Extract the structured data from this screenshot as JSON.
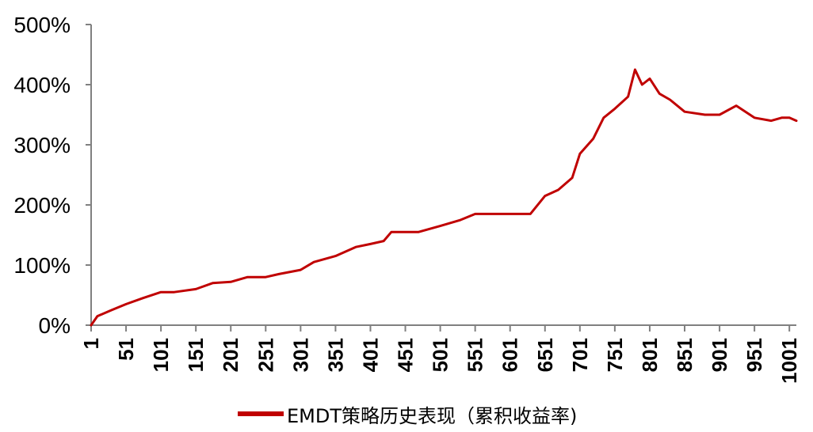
{
  "chart_data": {
    "type": "line",
    "ylim": [
      0,
      500
    ],
    "xlim": [
      1,
      1011
    ],
    "yticks": [
      "0%",
      "100%",
      "200%",
      "300%",
      "400%",
      "500%"
    ],
    "ytick_values": [
      0,
      100,
      200,
      300,
      400,
      500
    ],
    "xticks": [
      "1",
      "51",
      "101",
      "151",
      "201",
      "251",
      "301",
      "351",
      "401",
      "451",
      "501",
      "551",
      "601",
      "651",
      "701",
      "751",
      "801",
      "851",
      "901",
      "951",
      "1001"
    ],
    "xtick_values": [
      1,
      51,
      101,
      151,
      201,
      251,
      301,
      351,
      401,
      451,
      501,
      551,
      601,
      651,
      701,
      751,
      801,
      851,
      901,
      951,
      1001
    ],
    "grid": false,
    "legend_position": "bottom",
    "series": [
      {
        "name": "EMDT策略历史表现（累积收益率)",
        "color": "#c00000",
        "x": [
          1,
          10,
          30,
          51,
          75,
          101,
          120,
          151,
          175,
          201,
          225,
          251,
          270,
          301,
          320,
          351,
          380,
          401,
          420,
          431,
          451,
          470,
          501,
          530,
          551,
          580,
          601,
          630,
          651,
          670,
          690,
          701,
          720,
          735,
          751,
          770,
          780,
          790,
          801,
          815,
          830,
          851,
          880,
          901,
          925,
          951,
          975,
          990,
          1001,
          1011
        ],
        "y": [
          0,
          15,
          25,
          35,
          45,
          55,
          55,
          60,
          70,
          72,
          80,
          80,
          85,
          92,
          105,
          115,
          130,
          135,
          140,
          155,
          155,
          155,
          165,
          175,
          185,
          185,
          185,
          185,
          215,
          225,
          245,
          285,
          310,
          345,
          360,
          380,
          425,
          400,
          410,
          385,
          375,
          355,
          350,
          350,
          365,
          345,
          340,
          345,
          345,
          340
        ]
      }
    ]
  }
}
